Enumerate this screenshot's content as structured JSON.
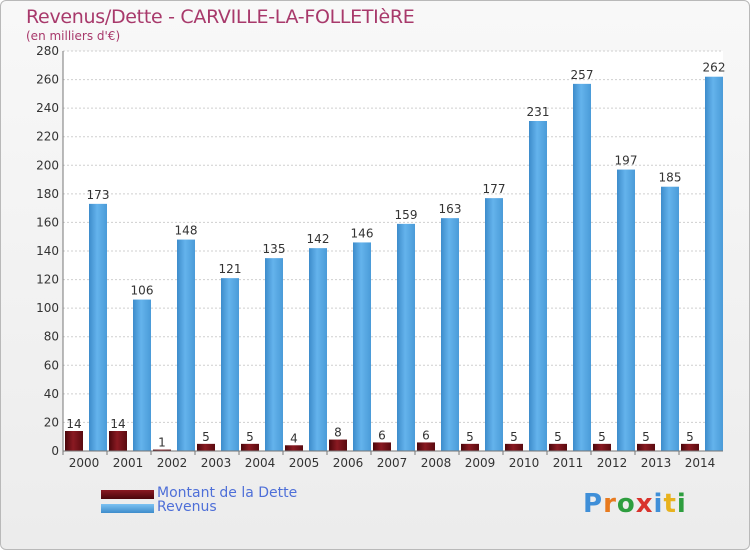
{
  "title": "Revenus/Dette - CARVILLE-LA-FOLLETIèRE",
  "subtitle": "(en milliers d'€)",
  "logo": {
    "text": "Proxiti"
  },
  "colors": {
    "dette": "#6b0d13",
    "revenus": "#58a9e6",
    "title": "#a8396b",
    "legend_text": "#4e6fd8"
  },
  "chart_data": {
    "type": "bar",
    "title": "Revenus/Dette - CARVILLE-LA-FOLLETIèRE",
    "subtitle": "(en milliers d'€)",
    "categories": [
      "2000",
      "2001",
      "2002",
      "2003",
      "2004",
      "2005",
      "2006",
      "2007",
      "2008",
      "2009",
      "2010",
      "2011",
      "2012",
      "2013",
      "2014"
    ],
    "series": [
      {
        "name": "Montant de la Dette",
        "color": "#6b0d13",
        "values": [
          14,
          14,
          1,
          5,
          5,
          4,
          8,
          6,
          6,
          5,
          5,
          5,
          5,
          5,
          5
        ]
      },
      {
        "name": "Revenus",
        "color": "#58a9e6",
        "values": [
          173,
          106,
          148,
          121,
          135,
          142,
          146,
          159,
          163,
          177,
          231,
          257,
          197,
          185,
          262
        ]
      }
    ],
    "ylim": [
      0,
      280
    ],
    "yticks": [
      0,
      20,
      40,
      60,
      80,
      100,
      120,
      140,
      160,
      180,
      200,
      220,
      240,
      260,
      280
    ],
    "grid": true,
    "legend": "bottom-left"
  }
}
